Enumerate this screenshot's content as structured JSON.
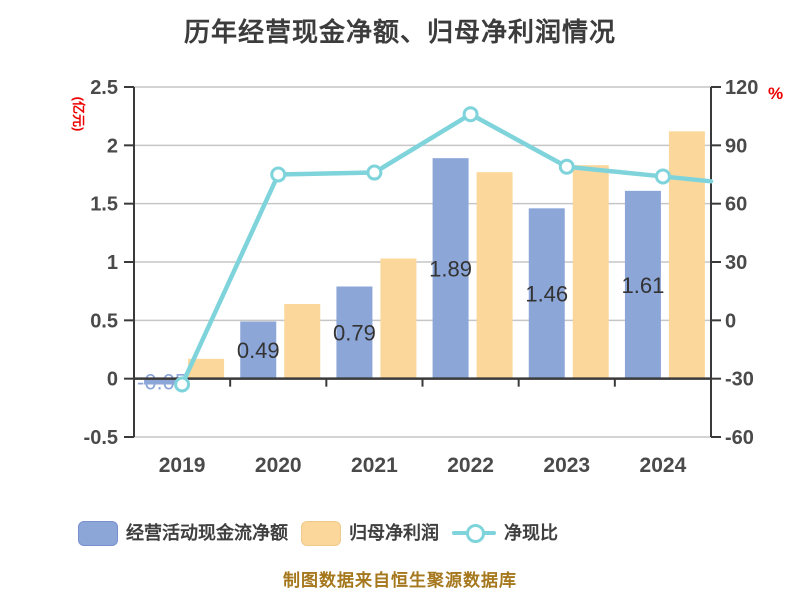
{
  "title": "历年经营现金净额、归母净利润情况",
  "caption": "制图数据来自恒生聚源数据库",
  "chart_data": {
    "type": "combo-bar-line",
    "categories": [
      "2019",
      "2020",
      "2021",
      "2022",
      "2023",
      "2024"
    ],
    "series": [
      {
        "name": "经营活动现金流净额",
        "type": "bar",
        "axis": "left",
        "color": "#8ca6d8",
        "values": [
          -0.05,
          0.49,
          0.79,
          1.89,
          1.46,
          1.61
        ],
        "value_labels": [
          "-0.05",
          "0.49",
          "0.79",
          "1.89",
          "1.46",
          "1.61"
        ],
        "label_colors": [
          "#8ca6d8",
          "#333333",
          "#333333",
          "#333333",
          "#333333",
          "#333333"
        ]
      },
      {
        "name": "归母净利润",
        "type": "bar",
        "axis": "left",
        "color": "#fbd79b",
        "values": [
          0.17,
          0.64,
          1.03,
          1.77,
          1.83,
          2.12
        ],
        "value_labels": null
      },
      {
        "name": "净现比",
        "type": "line",
        "axis": "right",
        "color": "#7fd4db",
        "marker": "circle-white",
        "values": [
          -33,
          75,
          76,
          106,
          79,
          74
        ],
        "extends_past_right_edge": true
      }
    ],
    "left_axis": {
      "label": "(亿元)",
      "label_color": "#ec0000",
      "min": -0.5,
      "max": 2.5,
      "ticks": [
        "2.5",
        "2",
        "1.5",
        "1",
        "0.5",
        "0",
        "-0.5"
      ]
    },
    "right_axis": {
      "label": "%",
      "label_color": "#ec0000",
      "min": -60,
      "max": 120,
      "ticks": [
        "120",
        "90",
        "60",
        "30",
        "0",
        "-30",
        "-60"
      ]
    },
    "grid": "horizontal",
    "legend_position": "bottom"
  },
  "legend": {
    "items": [
      {
        "label": "经营活动现金流净额",
        "swatch": "bar",
        "color": "#8ca6d8"
      },
      {
        "label": "归母净利润",
        "swatch": "bar",
        "color": "#fbd79b"
      },
      {
        "label": "净现比",
        "swatch": "line-marker",
        "color": "#7fd4db"
      }
    ]
  },
  "colors": {
    "bar_blue": "#8ca6d8",
    "bar_orange": "#fbd79b",
    "line_teal": "#7fd4db",
    "axis_text": "#4a4a4a",
    "title_text": "#3c3c3c",
    "red_label": "#ec0000",
    "caption_text": "#a6781e",
    "grid_line": "#c6c6c6",
    "axis_line": "#3a3a3a"
  }
}
